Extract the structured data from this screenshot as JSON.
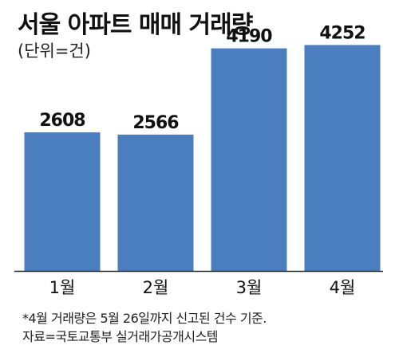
{
  "header": {
    "title": "서울 아파트 매매 거래량",
    "unit_note": "(단위=건)"
  },
  "footnotes": {
    "note": "*4월 거래량은 5월 26일까지 신고된 건수 기준.",
    "source": "자료=국토교통부 실거래가공개시스템"
  },
  "colors": {
    "bar": "#4a7ebf",
    "axis": "#222222",
    "text": "#111111"
  },
  "chart_data": {
    "type": "bar",
    "title": "서울 아파트 매매 거래량",
    "subtitle": "(단위=건)",
    "categories": [
      "1월",
      "2월",
      "3월",
      "4월"
    ],
    "values": [
      2608,
      2566,
      4190,
      4252
    ],
    "value_labels": [
      "2608",
      "2566",
      "4190",
      "4252"
    ],
    "xlabel": "",
    "ylabel": "",
    "ylim": [
      0,
      4500
    ],
    "grid": false,
    "legend": "none"
  }
}
